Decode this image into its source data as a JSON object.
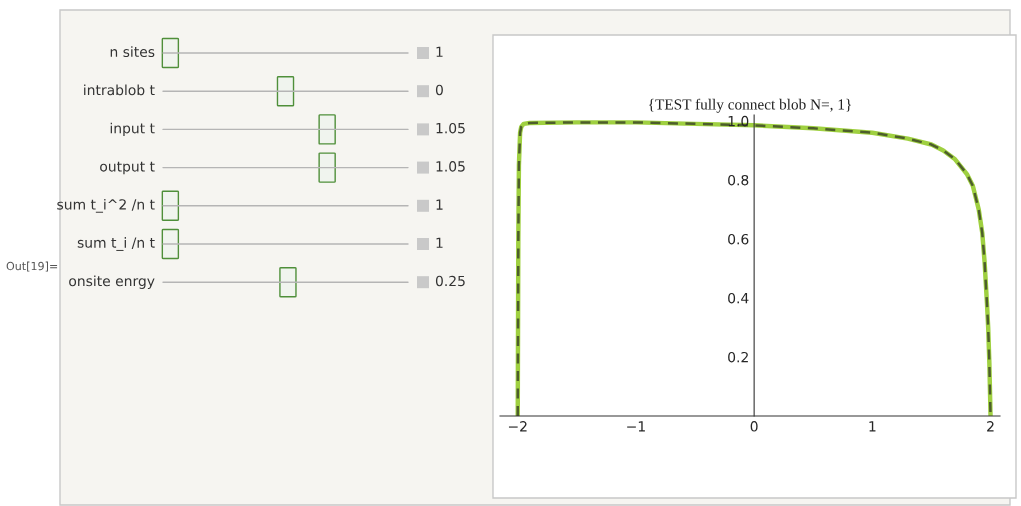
{
  "chart_data": {
    "type": "line",
    "title": "{TEST fully connect blob N=, 1}",
    "x": [
      -2,
      -1.995,
      -1.99,
      -1.98,
      -1.97,
      -1.95,
      -1.9,
      -1.5,
      -1,
      -0.5,
      0,
      0.5,
      1,
      1.3,
      1.5,
      1.6,
      1.7,
      1.8,
      1.85,
      1.9,
      1.93,
      1.95,
      1.97,
      1.98,
      1.99,
      2
    ],
    "series": [
      {
        "color": "#9fd040",
        "line_style": "solid",
        "values": [
          0,
          0.6,
          0.85,
          0.96,
          0.98,
          0.99,
          0.993,
          0.995,
          0.995,
          0.99,
          0.985,
          0.975,
          0.96,
          0.94,
          0.92,
          0.9,
          0.87,
          0.82,
          0.78,
          0.7,
          0.62,
          0.52,
          0.38,
          0.3,
          0.18,
          0
        ]
      },
      {
        "color": "#4d5e2b",
        "line_style": "dashed",
        "values": [
          0,
          0.6,
          0.85,
          0.96,
          0.98,
          0.99,
          0.993,
          0.995,
          0.995,
          0.99,
          0.985,
          0.975,
          0.96,
          0.94,
          0.92,
          0.9,
          0.87,
          0.82,
          0.78,
          0.7,
          0.62,
          0.52,
          0.38,
          0.3,
          0.18,
          0
        ]
      }
    ],
    "xlim": [
      -2.15,
      2.08
    ],
    "ylim": [
      0,
      1.02
    ],
    "xticks": [
      {
        "value": -2,
        "label": "−2"
      },
      {
        "value": -1,
        "label": "−1"
      },
      0,
      1,
      2
    ],
    "yticks": [
      0.2,
      0.4,
      0.6,
      0.8,
      {
        "value": 1,
        "label": "1.0"
      }
    ],
    "grid": false,
    "legend": false,
    "marker": "none",
    "annotations": [
      "Out[19]=",
      "n sites",
      "1",
      "intrablob t",
      "0",
      "input t",
      "1.05",
      "output t",
      "1.05",
      "sum t_i^2 /n t",
      "1",
      "sum t_i /n t",
      "1",
      "onsite enrgy",
      "0.25"
    ]
  }
}
